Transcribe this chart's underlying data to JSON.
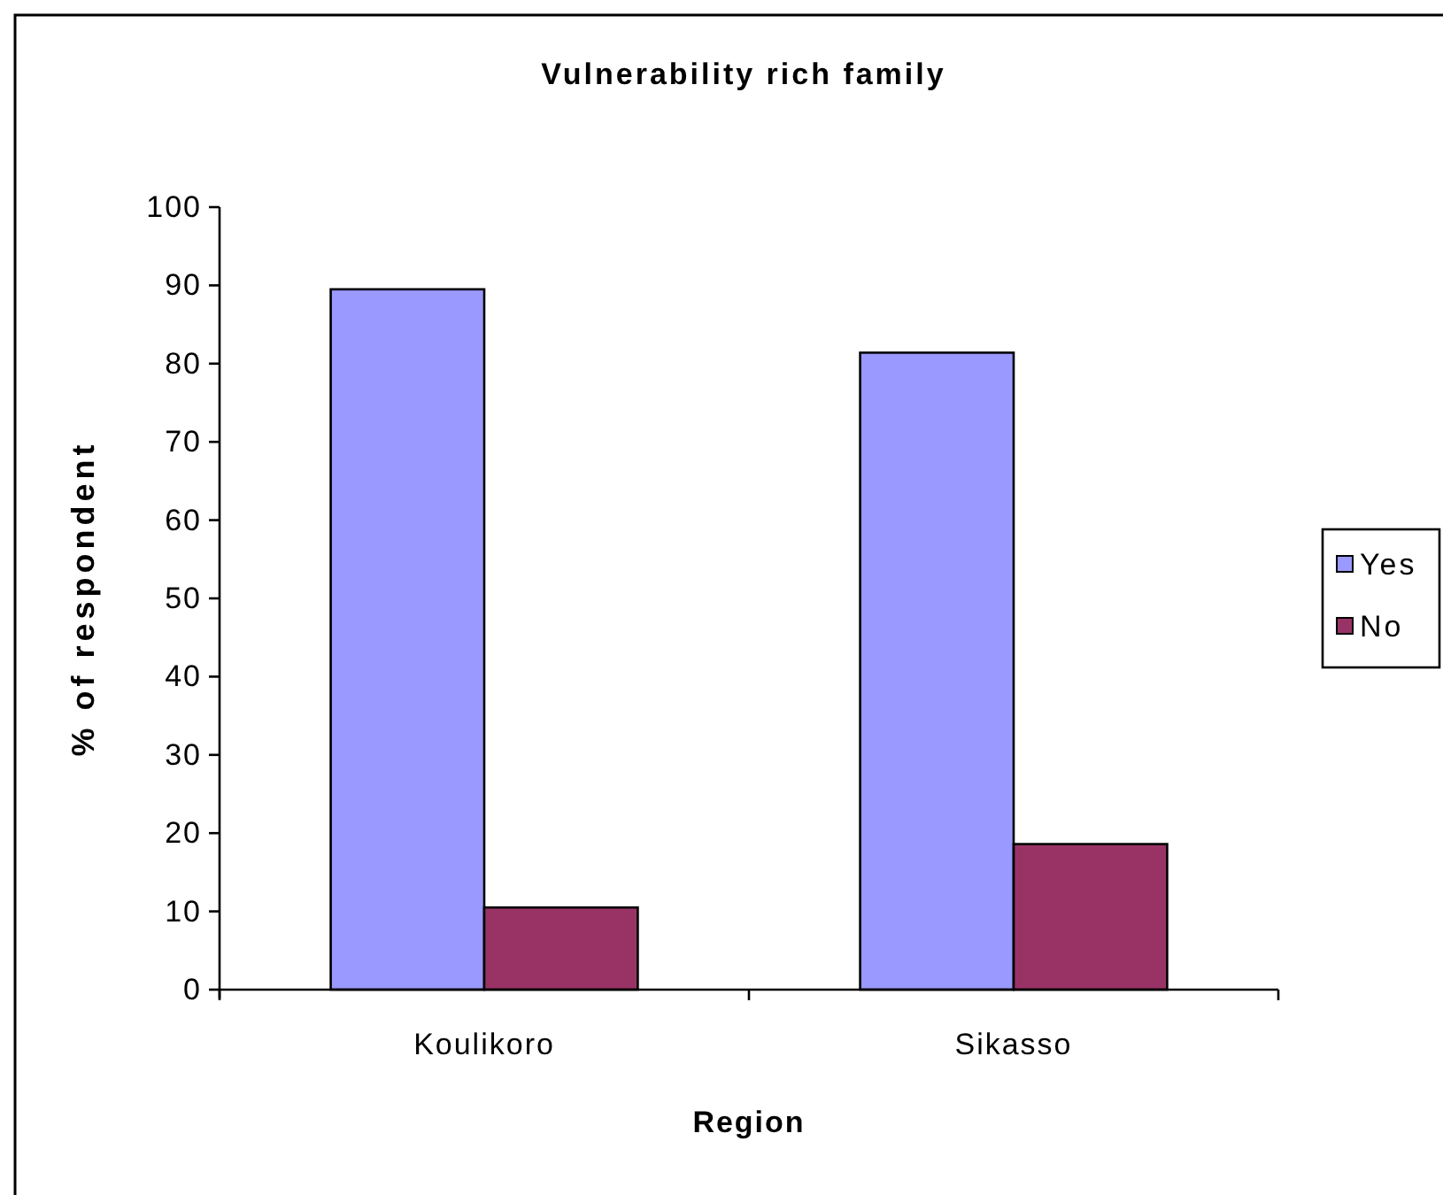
{
  "chart_data": {
    "type": "bar",
    "title": "Vulnerability rich family",
    "xlabel": "Region",
    "ylabel": "% of respondent",
    "categories": [
      "Koulikoro",
      "Sikasso"
    ],
    "series": [
      {
        "name": "Yes",
        "color": "#9999ff",
        "values": [
          89.5,
          81.4
        ]
      },
      {
        "name": "No",
        "color": "#993366",
        "values": [
          10.5,
          18.6
        ]
      }
    ],
    "ylim": [
      0,
      100
    ],
    "yticks": [
      0,
      10,
      20,
      30,
      40,
      50,
      60,
      70,
      80,
      90,
      100
    ],
    "grid": false,
    "legend": "right"
  }
}
